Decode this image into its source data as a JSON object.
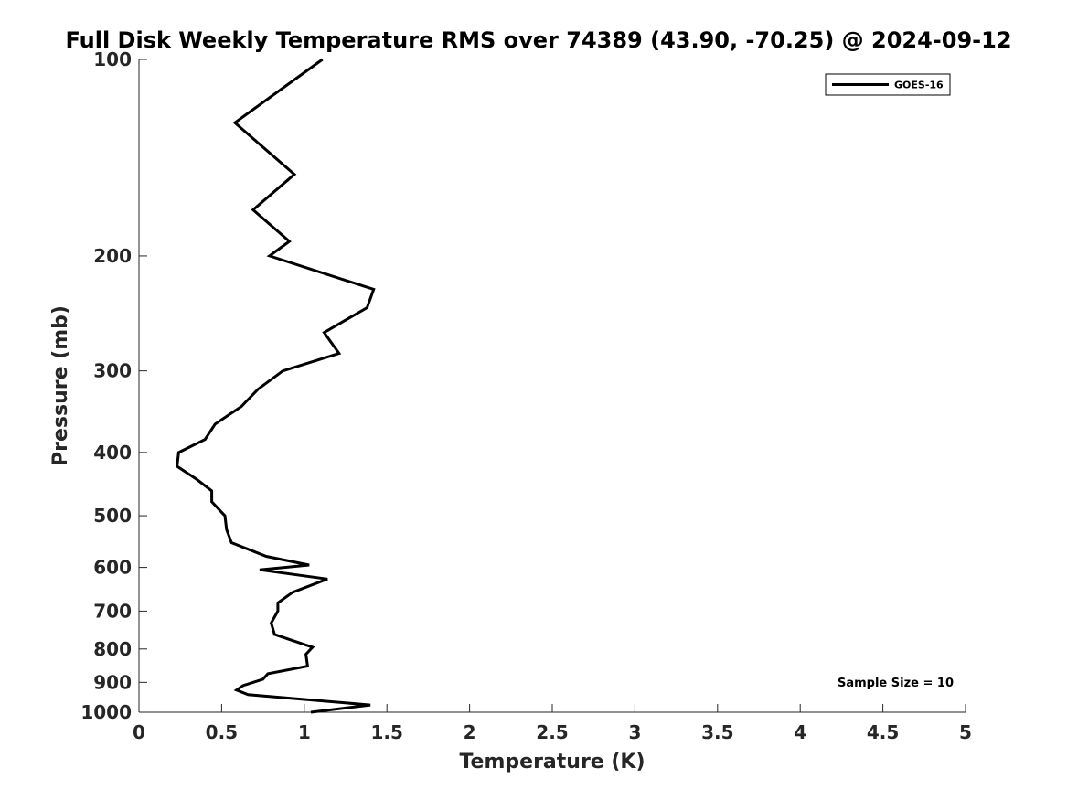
{
  "chart_data": {
    "type": "line",
    "title": "Full Disk Weekly Temperature RMS over 74389 (43.90, -70.25) @ 2024-09-12",
    "xlabel": "Temperature (K)",
    "ylabel": "Pressure (mb)",
    "xlim": [
      0,
      5
    ],
    "ylim": [
      100,
      1000
    ],
    "y_scale": "log",
    "y_reversed": true,
    "x_ticks": [
      0,
      0.5,
      1,
      1.5,
      2,
      2.5,
      3,
      3.5,
      4,
      4.5,
      5
    ],
    "x_tick_labels": [
      "0",
      "0.5",
      "1",
      "1.5",
      "2",
      "2.5",
      "3",
      "3.5",
      "4",
      "4.5",
      "5"
    ],
    "y_ticks": [
      100,
      200,
      300,
      400,
      500,
      600,
      700,
      800,
      900,
      1000
    ],
    "y_tick_labels": [
      "100",
      "200",
      "300",
      "400",
      "500",
      "600",
      "700",
      "800",
      "900",
      "1000"
    ],
    "grid": false,
    "legend_position": "top-right",
    "annotation": "Sample Size = 10",
    "series": [
      {
        "name": "GOES-16",
        "color": "#000000",
        "points": [
          [
            1.11,
            100
          ],
          [
            0.58,
            125
          ],
          [
            0.94,
            150
          ],
          [
            0.69,
            170
          ],
          [
            0.91,
            190
          ],
          [
            0.79,
            200
          ],
          [
            1.42,
            225
          ],
          [
            1.38,
            240
          ],
          [
            1.12,
            262
          ],
          [
            1.21,
            282
          ],
          [
            0.87,
            300
          ],
          [
            0.72,
            320
          ],
          [
            0.62,
            340
          ],
          [
            0.46,
            362
          ],
          [
            0.4,
            382
          ],
          [
            0.24,
            400
          ],
          [
            0.23,
            420
          ],
          [
            0.35,
            440
          ],
          [
            0.44,
            458
          ],
          [
            0.44,
            476
          ],
          [
            0.52,
            500
          ],
          [
            0.53,
            525
          ],
          [
            0.56,
            550
          ],
          [
            0.77,
            577
          ],
          [
            1.03,
            595
          ],
          [
            0.73,
            605
          ],
          [
            1.14,
            625
          ],
          [
            0.93,
            655
          ],
          [
            0.84,
            680
          ],
          [
            0.84,
            700
          ],
          [
            0.8,
            730
          ],
          [
            0.82,
            760
          ],
          [
            1.05,
            795
          ],
          [
            1.01,
            815
          ],
          [
            1.02,
            850
          ],
          [
            0.78,
            873
          ],
          [
            0.75,
            890
          ],
          [
            0.63,
            910
          ],
          [
            0.59,
            925
          ],
          [
            0.66,
            940
          ],
          [
            1.4,
            975
          ],
          [
            1.04,
            1000
          ]
        ]
      }
    ]
  }
}
